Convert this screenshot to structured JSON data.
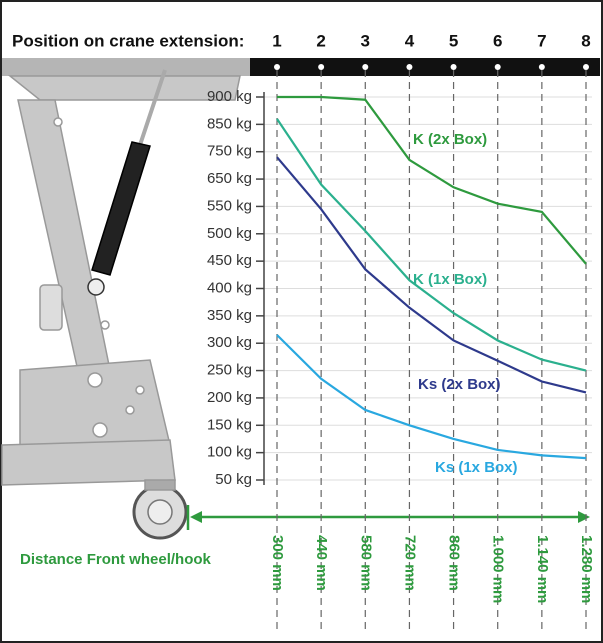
{
  "chart_data": {
    "type": "line",
    "positions_label": "Position on crane extension:",
    "positions": [
      1,
      2,
      3,
      4,
      5,
      6,
      7,
      8
    ],
    "x_label": "Distance Front wheel/hook",
    "categories": [
      "300 mm",
      "440 mm",
      "580 mm",
      "720 mm",
      "860 mm",
      "1.000 mm",
      "1.140 mm",
      "1.280 mm"
    ],
    "yticks": [
      {
        "value": 900,
        "label": "900 kg"
      },
      {
        "value": 850,
        "label": "850 kg"
      },
      {
        "value": 750,
        "label": "750 kg"
      },
      {
        "value": 650,
        "label": "650 kg"
      },
      {
        "value": 550,
        "label": "550 kg"
      },
      {
        "value": 500,
        "label": "500 kg"
      },
      {
        "value": 450,
        "label": "450 kg"
      },
      {
        "value": 400,
        "label": "400 kg"
      },
      {
        "value": 350,
        "label": "350 kg"
      },
      {
        "value": 300,
        "label": "300 kg"
      },
      {
        "value": 250,
        "label": "250 kg"
      },
      {
        "value": 200,
        "label": "200 kg"
      },
      {
        "value": 150,
        "label": "150 kg"
      },
      {
        "value": 100,
        "label": "100 kg"
      },
      {
        "value": 50,
        "label": "50 kg"
      }
    ],
    "grid": true,
    "series": [
      {
        "name": "K (2x Box)",
        "color": "#2e9a3e",
        "values": [
          900,
          900,
          895,
          720,
          620,
          560,
          540,
          445
        ]
      },
      {
        "name": "K (1x Box)",
        "color": "#2bb08e",
        "values": [
          860,
          630,
          505,
          415,
          355,
          305,
          270,
          250
        ]
      },
      {
        "name": "Ks (2x Box)",
        "color": "#2e3a8c",
        "values": [
          730,
          545,
          435,
          365,
          305,
          268,
          230,
          210
        ]
      },
      {
        "name": "Ks (1x Box)",
        "color": "#29a8e0",
        "values": [
          315,
          235,
          178,
          150,
          125,
          105,
          95,
          90
        ]
      }
    ]
  }
}
